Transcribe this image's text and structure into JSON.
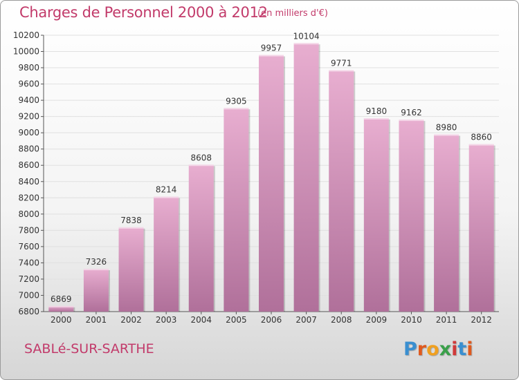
{
  "title": "Charges de Personnel 2000 à 2012",
  "subtitle": "(en milliers d'€)",
  "city": "SABLé-SUR-SARTHE",
  "brand": {
    "letters": [
      "P",
      "r",
      "o",
      "x",
      "i",
      "t",
      "i"
    ],
    "colors": [
      "#3a8fd0",
      "#e05a1e",
      "#f0a020",
      "#3aa04a",
      "#d03a3a",
      "#3a8fd0",
      "#e05a1e"
    ]
  },
  "colors": {
    "bar_light": "#e8aed0",
    "bar_dark": "#b0709a",
    "accent": "#c23a6a",
    "grid": "#e0e0e0"
  },
  "chart_data": {
    "type": "bar",
    "categories": [
      "2000",
      "2001",
      "2002",
      "2003",
      "2004",
      "2005",
      "2006",
      "2007",
      "2008",
      "2009",
      "2010",
      "2011",
      "2012"
    ],
    "values": [
      6869,
      7326,
      7838,
      8214,
      8608,
      9305,
      9957,
      10104,
      9771,
      9180,
      9162,
      8980,
      8860
    ],
    "ylim": [
      6800,
      10200
    ],
    "yticks": [
      6800,
      7000,
      7200,
      7400,
      7600,
      7800,
      8000,
      8200,
      8400,
      8600,
      8800,
      9000,
      9200,
      9400,
      9600,
      9800,
      10000,
      10200
    ],
    "grid": true
  }
}
